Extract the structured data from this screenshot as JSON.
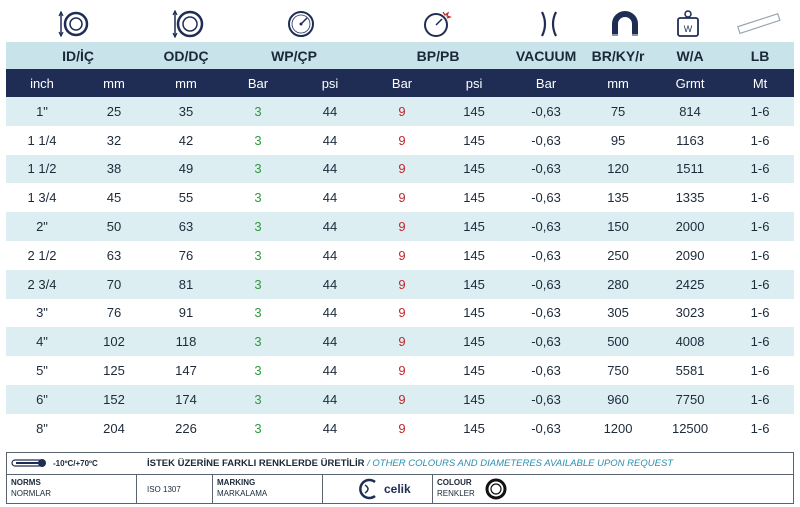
{
  "icons": [
    "diameter-inner-icon",
    "diameter-outer-icon",
    "pressure-gauge-icon",
    "burst-gauge-icon",
    "vacuum-icon",
    "bend-radius-icon",
    "weight-icon",
    "length-icon"
  ],
  "columns": {
    "id": "ID/İÇ",
    "od": "OD/DÇ",
    "wp": "WP/ÇP",
    "bp": "BP/PB",
    "vacuum": "VACUUM",
    "br": "BR/KY/r",
    "wa": "W/A",
    "lb": "LB"
  },
  "units": [
    "inch",
    "mm",
    "mm",
    "Bar",
    "psi",
    "Bar",
    "psi",
    "Bar",
    "mm",
    "Grmt",
    "Mt"
  ],
  "rows": [
    [
      "1\"",
      "25",
      "35",
      "3",
      "44",
      "9",
      "145",
      "-0,63",
      "75",
      "814",
      "1-6"
    ],
    [
      "1 1/4",
      "32",
      "42",
      "3",
      "44",
      "9",
      "145",
      "-0,63",
      "95",
      "1163",
      "1-6"
    ],
    [
      "1 1/2",
      "38",
      "49",
      "3",
      "44",
      "9",
      "145",
      "-0,63",
      "120",
      "1511",
      "1-6"
    ],
    [
      "1 3/4",
      "45",
      "55",
      "3",
      "44",
      "9",
      "145",
      "-0,63",
      "135",
      "1335",
      "1-6"
    ],
    [
      "2\"",
      "50",
      "63",
      "3",
      "44",
      "9",
      "145",
      "-0,63",
      "150",
      "2000",
      "1-6"
    ],
    [
      "2 1/2",
      "63",
      "76",
      "3",
      "44",
      "9",
      "145",
      "-0,63",
      "250",
      "2090",
      "1-6"
    ],
    [
      "2 3/4",
      "70",
      "81",
      "3",
      "44",
      "9",
      "145",
      "-0,63",
      "280",
      "2425",
      "1-6"
    ],
    [
      "3\"",
      "76",
      "91",
      "3",
      "44",
      "9",
      "145",
      "-0,63",
      "305",
      "3023",
      "1-6"
    ],
    [
      "4\"",
      "102",
      "118",
      "3",
      "44",
      "9",
      "145",
      "-0,63",
      "500",
      "4008",
      "1-6"
    ],
    [
      "5\"",
      "125",
      "147",
      "3",
      "44",
      "9",
      "145",
      "-0,63",
      "750",
      "5581",
      "1-6"
    ],
    [
      "6\"",
      "152",
      "174",
      "3",
      "44",
      "9",
      "145",
      "-0,63",
      "960",
      "7750",
      "1-6"
    ],
    [
      "8\"",
      "204",
      "226",
      "3",
      "44",
      "9",
      "145",
      "-0,63",
      "1200",
      "12500",
      "1-6"
    ]
  ],
  "footer": {
    "temperature": "-10ºC/+70ºC",
    "note_tr": "İSTEK ÜZERİNE FARKLI RENKLERDE ÜRETİLİR",
    "note_sep": " / ",
    "note_en": "OTHER COLOURS AND DIAMETERES AVAILABLE UPON REQUEST",
    "norms_label": "NORMS",
    "norms_label_tr": "NORMLAR",
    "norms_value": "ISO 1307",
    "marking_label": "MARKING",
    "marking_label_tr": "MARKALAMA",
    "brand": "celik",
    "colour_label": "COLOUR",
    "colour_label_tr": "RENKLER"
  },
  "colors": {
    "header_bg": "#c9e3ea",
    "units_bg": "#1f2d55",
    "row_alt": "#ddeef2",
    "wp_green": "#2e9a3c",
    "bp_red": "#c0282e"
  }
}
